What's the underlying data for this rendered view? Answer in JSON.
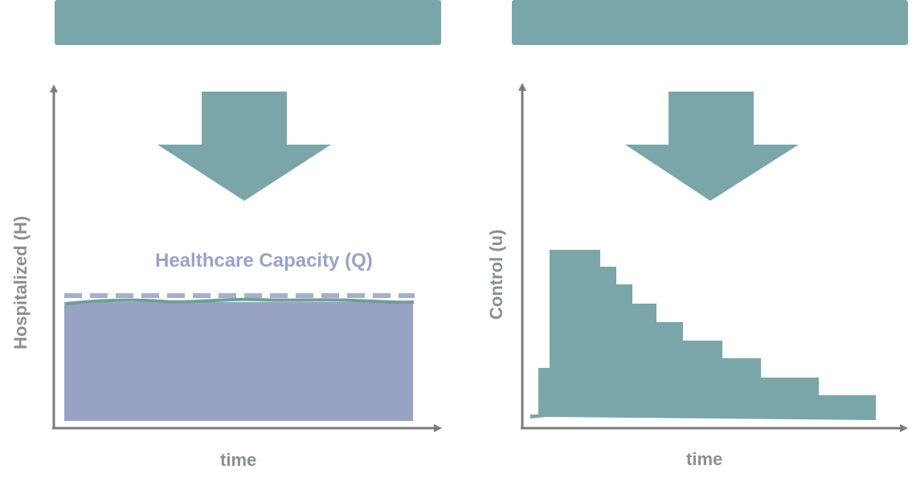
{
  "left_panel": {
    "x_axis_label": "time",
    "y_axis_label": "Hospitalized (H)",
    "capacity_label": "Healthcare Capacity (Q)",
    "colors": {
      "area_fill": "#98a3c3",
      "capacity_line": "#a6aed0",
      "curve": "#6f9e98"
    }
  },
  "right_panel": {
    "x_axis_label": "time",
    "y_axis_label": "Control (u)",
    "colors": {
      "control_fill": "#7aa6aa"
    }
  },
  "colors": {
    "banner": "#7aa6aa",
    "arrow": "#7aa6aa",
    "axis": "#7c7c7c"
  }
}
